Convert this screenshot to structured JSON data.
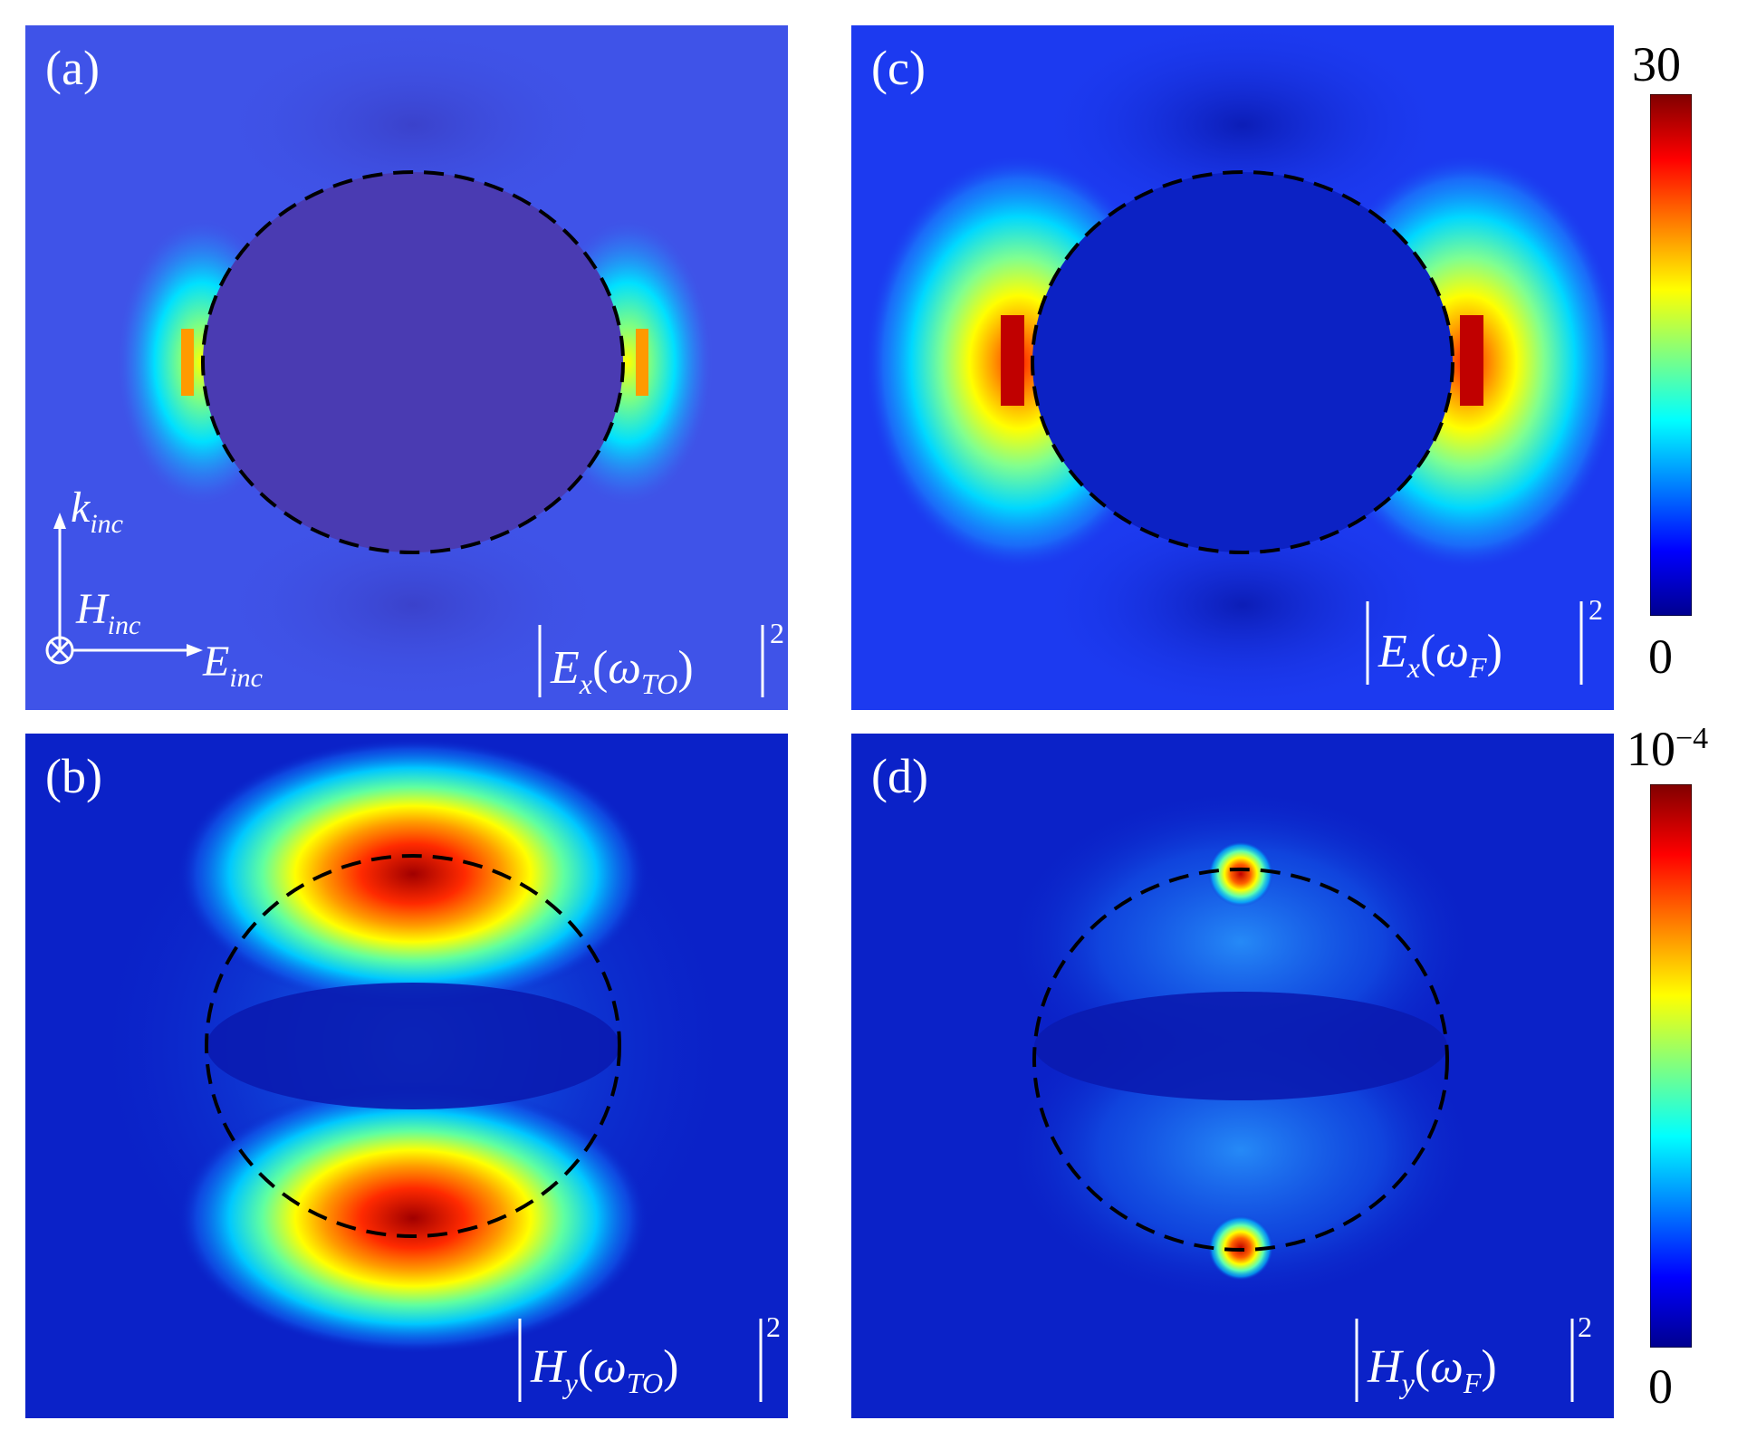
{
  "chart_data": [
    {
      "type": "heatmap",
      "panel": "(a)",
      "field_label": {
        "name": "E",
        "sub": "x",
        "arg": "ω",
        "argsub": "TO",
        "power": "2"
      },
      "inset_vectors": {
        "k": "k",
        "k_sub": "inc",
        "h": "H",
        "h_sub": "inc",
        "e": "E",
        "e_sub": "inc"
      },
      "background": "#3f53e8",
      "hotspots": [
        "left",
        "right"
      ],
      "colorscale": "jet",
      "zrange": [
        0,
        30
      ]
    },
    {
      "type": "heatmap",
      "panel": "(b)",
      "field_label": {
        "name": "H",
        "sub": "y",
        "arg": "ω",
        "argsub": "TO",
        "power": "2"
      },
      "background": "#0b22c8",
      "hotspots": [
        "top",
        "bottom"
      ],
      "colorscale": "jet",
      "zrange": [
        0,
        0.0001
      ]
    },
    {
      "type": "heatmap",
      "panel": "(c)",
      "field_label": {
        "name": "E",
        "sub": "x",
        "arg": "ω",
        "argsub": "F",
        "power": "2"
      },
      "background": "#1c3af0",
      "hotspots": [
        "left",
        "right"
      ],
      "colorscale": "jet",
      "zrange": [
        0,
        30
      ]
    },
    {
      "type": "heatmap",
      "panel": "(d)",
      "field_label": {
        "name": "H",
        "sub": "y",
        "arg": "ω",
        "argsub": "F",
        "power": "2"
      },
      "background": "#0b22c8",
      "hotspots": [
        "top-point",
        "bottom-point"
      ],
      "colorscale": "jet",
      "zrange": [
        0,
        0.0001
      ]
    }
  ],
  "colorbars": [
    {
      "max_label": "30",
      "min_label": "0"
    },
    {
      "max_label": "10",
      "max_exp": "−4",
      "min_label": "0"
    }
  ],
  "colors": {
    "jet": [
      "#00008f",
      "#0000ff",
      "#0080ff",
      "#00ffff",
      "#80ff80",
      "#ffff00",
      "#ff8000",
      "#ff0000",
      "#800000"
    ]
  }
}
